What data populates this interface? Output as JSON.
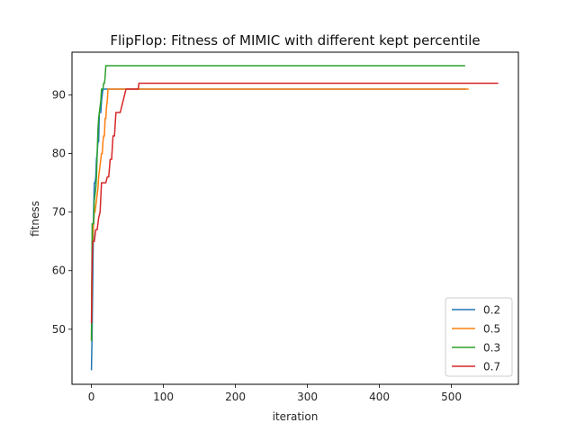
{
  "chart_data": {
    "type": "line",
    "title": "FlipFlop: Fitness of MIMIC with different kept percentile",
    "xlabel": "iteration",
    "ylabel": "fitness",
    "xlim": [
      -27,
      593
    ],
    "ylim": [
      40.6,
      97.3
    ],
    "xticks": [
      0,
      100,
      200,
      300,
      400,
      500
    ],
    "yticks": [
      50,
      60,
      70,
      80,
      90
    ],
    "grid": false,
    "legend_position": "lower right",
    "series": [
      {
        "name": "0.2",
        "color": "#1f77b4",
        "x": [
          0,
          1,
          2,
          3,
          4,
          5,
          6,
          7,
          8,
          9,
          10,
          11,
          12,
          13,
          14,
          15,
          16,
          17,
          18,
          520
        ],
        "y": [
          43,
          50,
          60,
          70,
          75,
          75,
          76,
          79,
          80,
          82,
          82,
          87,
          87,
          87,
          89,
          90,
          91,
          91,
          91,
          91
        ]
      },
      {
        "name": "0.5",
        "color": "#ff7f0e",
        "x": [
          0,
          1,
          2,
          3,
          4,
          5,
          6,
          7,
          8,
          9,
          10,
          11,
          12,
          13,
          14,
          15,
          16,
          17,
          18,
          19,
          20,
          21,
          22,
          23,
          24,
          25,
          524
        ],
        "y": [
          48,
          62,
          66,
          68,
          70,
          70,
          71,
          72,
          73,
          74,
          76,
          77,
          78,
          79,
          80,
          80,
          82,
          83,
          83,
          86,
          86,
          88,
          89,
          91,
          91,
          91,
          91
        ]
      },
      {
        "name": "0.3",
        "color": "#2ca02c",
        "x": [
          0,
          1,
          2,
          3,
          4,
          5,
          6,
          7,
          8,
          9,
          10,
          11,
          12,
          13,
          14,
          15,
          16,
          17,
          18,
          19,
          20,
          21,
          519
        ],
        "y": [
          48,
          68,
          68,
          68,
          72,
          73,
          74,
          76,
          80,
          84,
          86,
          87,
          88,
          89,
          91,
          91,
          91,
          92,
          92,
          93,
          95,
          95,
          95
        ]
      },
      {
        "name": "0.7",
        "color": "#d62728",
        "x": [
          0,
          1,
          2,
          3,
          4,
          5,
          6,
          7,
          8,
          9,
          10,
          12,
          14,
          16,
          18,
          20,
          22,
          24,
          26,
          28,
          30,
          32,
          34,
          36,
          38,
          40,
          42,
          44,
          46,
          48,
          50,
          52,
          55,
          60,
          65,
          66,
          565
        ],
        "y": [
          51,
          62,
          65,
          65,
          65,
          66,
          67,
          67,
          67,
          68,
          69,
          70,
          75,
          75,
          75,
          75,
          76,
          76,
          79,
          79,
          83,
          83,
          87,
          87,
          87,
          87,
          88,
          89,
          90,
          91,
          91,
          91,
          91,
          91,
          91,
          92,
          92
        ]
      }
    ]
  }
}
